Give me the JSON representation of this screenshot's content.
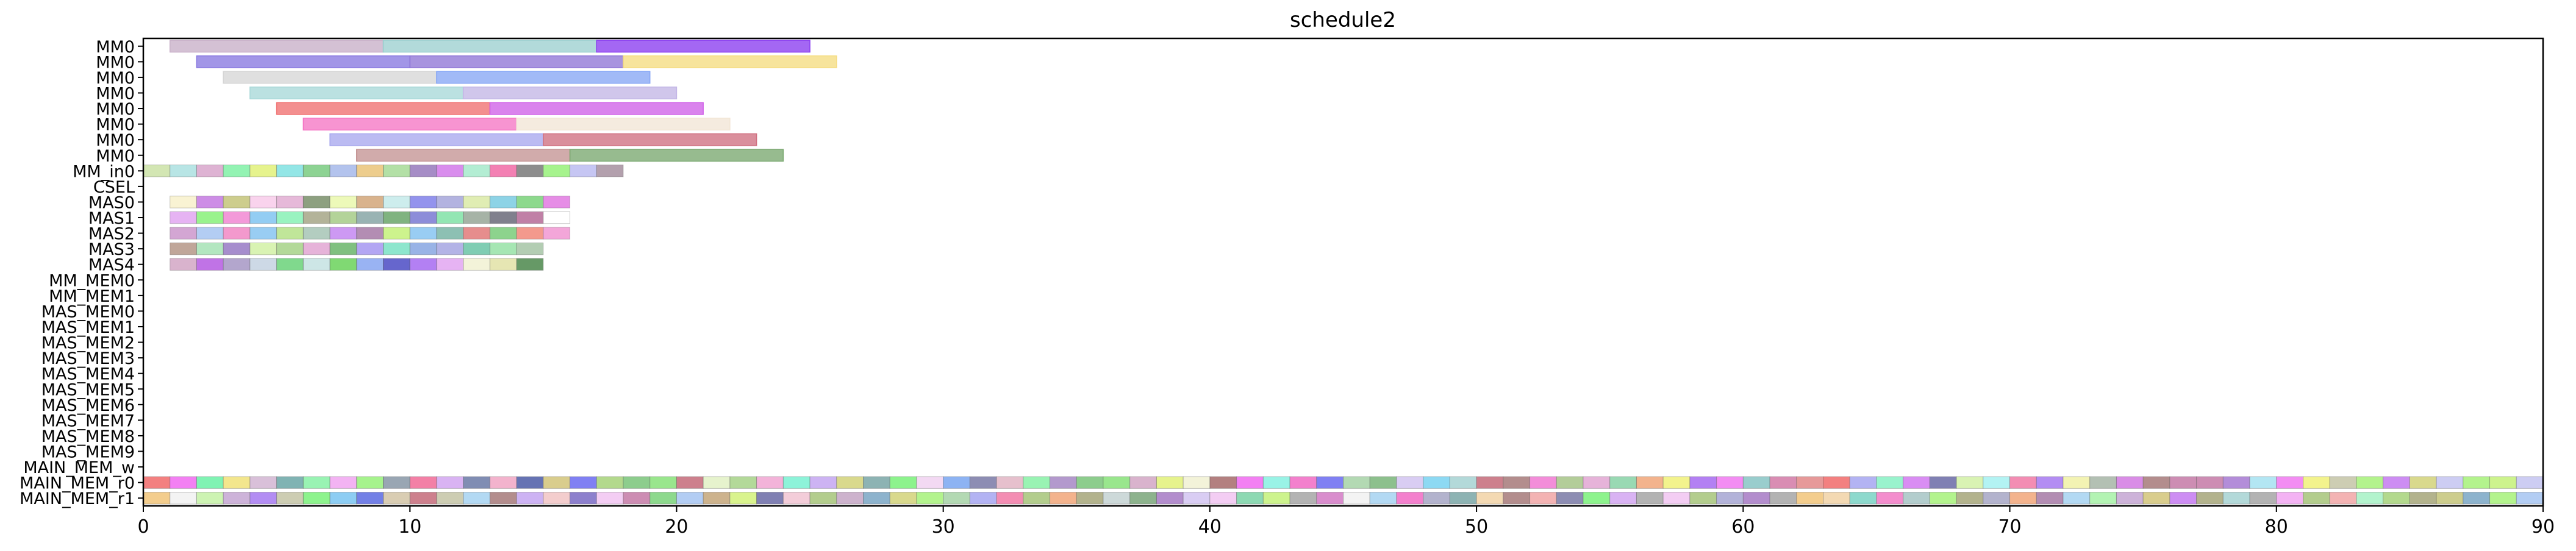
{
  "chart_data": {
    "type": "gantt",
    "title": "schedule2",
    "xlabel": "",
    "ylabel": "",
    "xlim": [
      0,
      90
    ],
    "xticks": [
      0,
      10,
      20,
      30,
      40,
      50,
      60,
      70,
      80,
      90
    ],
    "grid": false,
    "rows": [
      "MM0",
      "MM0",
      "MM0",
      "MM0",
      "MM0",
      "MM0",
      "MM0",
      "MM0",
      "MM_in0",
      "CSEL",
      "MAS0",
      "MAS1",
      "MAS2",
      "MAS3",
      "MAS4",
      "MM_MEM0",
      "MM_MEM1",
      "MAS_MEM0",
      "MAS_MEM1",
      "MAS_MEM2",
      "MAS_MEM3",
      "MAS_MEM4",
      "MAS_MEM5",
      "MAS_MEM6",
      "MAS_MEM7",
      "MAS_MEM8",
      "MAS_MEM9",
      "MAIN_MEM_w",
      "MAIN_MEM_r0",
      "MAIN_MEM_r1"
    ],
    "tasks": [
      {
        "row": 0,
        "start": 1,
        "end": 9,
        "color": "#c8b0c8"
      },
      {
        "row": 0,
        "start": 9,
        "end": 17,
        "color": "#9ccfcf"
      },
      {
        "row": 0,
        "start": 17,
        "end": 25,
        "color": "#8a3cf0"
      },
      {
        "row": 1,
        "start": 2,
        "end": 10,
        "color": "#8878e0"
      },
      {
        "row": 1,
        "start": 10,
        "end": 18,
        "color": "#8f76d6"
      },
      {
        "row": 1,
        "start": 18,
        "end": 26,
        "color": "#f5dc80"
      },
      {
        "row": 2,
        "start": 3,
        "end": 11,
        "color": "#d6d6d6"
      },
      {
        "row": 2,
        "start": 11,
        "end": 19,
        "color": "#86a6f5"
      },
      {
        "row": 3,
        "start": 4,
        "end": 12,
        "color": "#a8d8d8"
      },
      {
        "row": 3,
        "start": 12,
        "end": 20,
        "color": "#c3b6e6"
      },
      {
        "row": 4,
        "start": 5,
        "end": 13,
        "color": "#f07070"
      },
      {
        "row": 4,
        "start": 13,
        "end": 21,
        "color": "#d060e8"
      },
      {
        "row": 5,
        "start": 6,
        "end": 14,
        "color": "#f576c4"
      },
      {
        "row": 5,
        "start": 14,
        "end": 22,
        "color": "#f2e6d6"
      },
      {
        "row": 6,
        "start": 7,
        "end": 15,
        "color": "#a8a8ee"
      },
      {
        "row": 6,
        "start": 15,
        "end": 23,
        "color": "#d07080"
      },
      {
        "row": 7,
        "start": 8,
        "end": 16,
        "color": "#c49494"
      },
      {
        "row": 7,
        "start": 16,
        "end": 24,
        "color": "#7aa870"
      }
    ],
    "unit_rows": [
      {
        "row": 8,
        "start": 0,
        "end": 18,
        "colors": [
          "#c8e0a0",
          "#a6dede",
          "#d6a0c8",
          "#78f0a0",
          "#e0f070",
          "#78e0e0",
          "#70c878",
          "#a0b4e8",
          "#e8c070",
          "#a0d890",
          "#9070b8",
          "#d070e8",
          "#a0e8c8",
          "#f060a0",
          "#707070",
          "#90f070",
          "#b8b8f0",
          "#a08898"
        ]
      },
      {
        "row": 10,
        "start": 1,
        "end": 16,
        "colors": [
          "#f8f0c8",
          "#c070e0",
          "#c0c070",
          "#f8c8e8",
          "#e0a8d0",
          "#708860",
          "#e8f8a8",
          "#d0a070",
          "#c0e8e8",
          "#7878e8",
          "#a0a0d8",
          "#d8e8a0",
          "#70c8e0",
          "#70d070",
          "#e070e0"
        ]
      },
      {
        "row": 11,
        "start": 1,
        "end": 16,
        "colors": [
          "#e0a0f0",
          "#80f070",
          "#f080d0",
          "#78c0f0",
          "#80f0b0",
          "#a0a080",
          "#a0c880",
          "#80a0a0",
          "#60a060",
          "#7070d0",
          "#78e0a0",
          "#90a090",
          "#606070",
          "#b06090",
          "#ffffff"
        ]
      },
      {
        "row": 12,
        "start": 1,
        "end": 16,
        "colors": [
          "#c890c8",
          "#a0c0f0",
          "#f080c0",
          "#80c0f0",
          "#b0e080",
          "#a0c0b0",
          "#c080f0",
          "#a070a0",
          "#c0f070",
          "#80c0f0",
          "#70b0a0",
          "#e07070",
          "#70c870",
          "#f08070",
          "#f090d0"
        ]
      },
      {
        "row": 13,
        "start": 1,
        "end": 15,
        "colors": [
          "#b09080",
          "#a0e0b0",
          "#9070c0",
          "#d0f0a0",
          "#a0d080",
          "#e0a0d0",
          "#60b060",
          "#a090f0",
          "#70e0c0",
          "#80a0e0",
          "#a0a0e0",
          "#60c0a0",
          "#90e0a0",
          "#a0c0a0"
        ]
      },
      {
        "row": 14,
        "start": 1,
        "end": 15,
        "colors": [
          "#d0a0c0",
          "#b050e0",
          "#a090c0",
          "#c0d0e0",
          "#60d070",
          "#c0e0e0",
          "#60d050",
          "#80a0f0",
          "#4040c0",
          "#a060f0",
          "#e0a0f0",
          "#f0f0d0",
          "#e0e0a0",
          "#408040"
        ]
      },
      {
        "row": 28,
        "start": 0,
        "end": 90,
        "colors": [
          "#f06060",
          "#f060f0",
          "#60f0a0",
          "#f0e070",
          "#d0b0d0",
          "#60a0a0",
          "#80f0a0",
          "#f0a0f0",
          "#90f070",
          "#8090a0",
          "#f06090",
          "#d0a0f0",
          "#6070a0",
          "#f0a0c0",
          "#4050a0",
          "#d0c070",
          "#6060f0",
          "#a0d070",
          "#70c070",
          "#80e070",
          "#c06070",
          "#e0f0c0",
          "#a0d080",
          "#f0a0d0",
          "#70f0d0",
          "#c0a0f0",
          "#d0d070",
          "#70a0a0",
          "#70f070",
          "#f0d0f0",
          "#70a0f0",
          "#7070a0",
          "#e0b0c0",
          "#80f0a0",
          "#a080c0",
          "#70c070",
          "#80e070",
          "#d0a0c0",
          "#e0f070",
          "#f0f0d0",
          "#a06060",
          "#f060f0",
          "#80f0e0",
          "#f060c0",
          "#6060f0",
          "#a0d0a0",
          "#70b070",
          "#d0c0f0",
          "#70d0f0",
          "#a0d0d0",
          "#c06070",
          "#a07070",
          "#f070d0",
          "#a0c080",
          "#e0a0d0",
          "#80d0a0",
          "#f0a070",
          "#f0f070",
          "#a060f0",
          "#f070f0",
          "#80c0c0",
          "#d070a0",
          "#e08080",
          "#f06060",
          "#a0a0f0",
          "#80f0c0",
          "#d070f0",
          "#6060a0",
          "#d0f0a0",
          "#a0f0f0",
          "#f070a0",
          "#a070f0",
          "#f0f0a0",
          "#a0b0a0",
          "#d070e0",
          "#a07070",
          "#c070a0",
          "#c070a0",
          "#a070d0",
          "#a0e0f0",
          "#f070f0",
          "#f0f070",
          "#c0c0a0",
          "#a0f070",
          "#c070f0",
          "#d0d070",
          "#c0c0f0",
          "#a0f070",
          "#c0f070",
          "#c0c0f0"
        ]
      },
      {
        "row": 29,
        "start": 0,
        "end": 90,
        "colors": [
          "#f0c070",
          "#f0f0f0",
          "#c0f0a0",
          "#c0a0d0",
          "#a070f0",
          "#c0c0a0",
          "#70f070",
          "#70c0f0",
          "#5060e0",
          "#d0c0a0",
          "#c06070",
          "#c0c0a0",
          "#a0d0f0",
          "#a07070",
          "#c0a0f0",
          "#f0c0c0",
          "#7060c0",
          "#f0c0f0",
          "#c070a0",
          "#70d070",
          "#a0c0f0",
          "#c0a070",
          "#d0f070",
          "#6060a0",
          "#f0c0d0",
          "#a0c070",
          "#c0a0c0",
          "#70a0c0",
          "#d0d070",
          "#a0f070",
          "#a0d0a0",
          "#a0a0f0",
          "#f070a0",
          "#a0c070",
          "#f0a070",
          "#a0a070",
          "#c0d0d0",
          "#70a070",
          "#a070c0",
          "#d0c0f0",
          "#f0c0f0",
          "#70d0a0",
          "#c0f070",
          "#a0a0a0",
          "#d070c0",
          "#f0f0f0",
          "#a0d0f0",
          "#f060c0",
          "#a0a0c0",
          "#70a0a0",
          "#f0d0a0",
          "#a07070",
          "#f0a0a0",
          "#7070a0",
          "#70f070",
          "#d0a0f0",
          "#a0a0a0",
          "#f0c0f0",
          "#a0c070",
          "#a0a0d0",
          "#a070c0",
          "#a0a0a0",
          "#f0c070",
          "#f0d0a0",
          "#70d0c0",
          "#f070c0",
          "#a0c0c0",
          "#a0f070",
          "#a0a070",
          "#a0a0c0",
          "#f0a070",
          "#a070a0",
          "#a0d0f0",
          "#a0f0a0",
          "#c0a0d0",
          "#d0c070",
          "#c070f0",
          "#a0a070",
          "#a0d0d0",
          "#a0a0a0",
          "#f0a0f0",
          "#a0c070",
          "#f0a0a0",
          "#a0f0c0",
          "#a0d070",
          "#a0a070",
          "#c0c070",
          "#70a0c0",
          "#a0f070",
          "#a0c0f0"
        ]
      }
    ]
  }
}
